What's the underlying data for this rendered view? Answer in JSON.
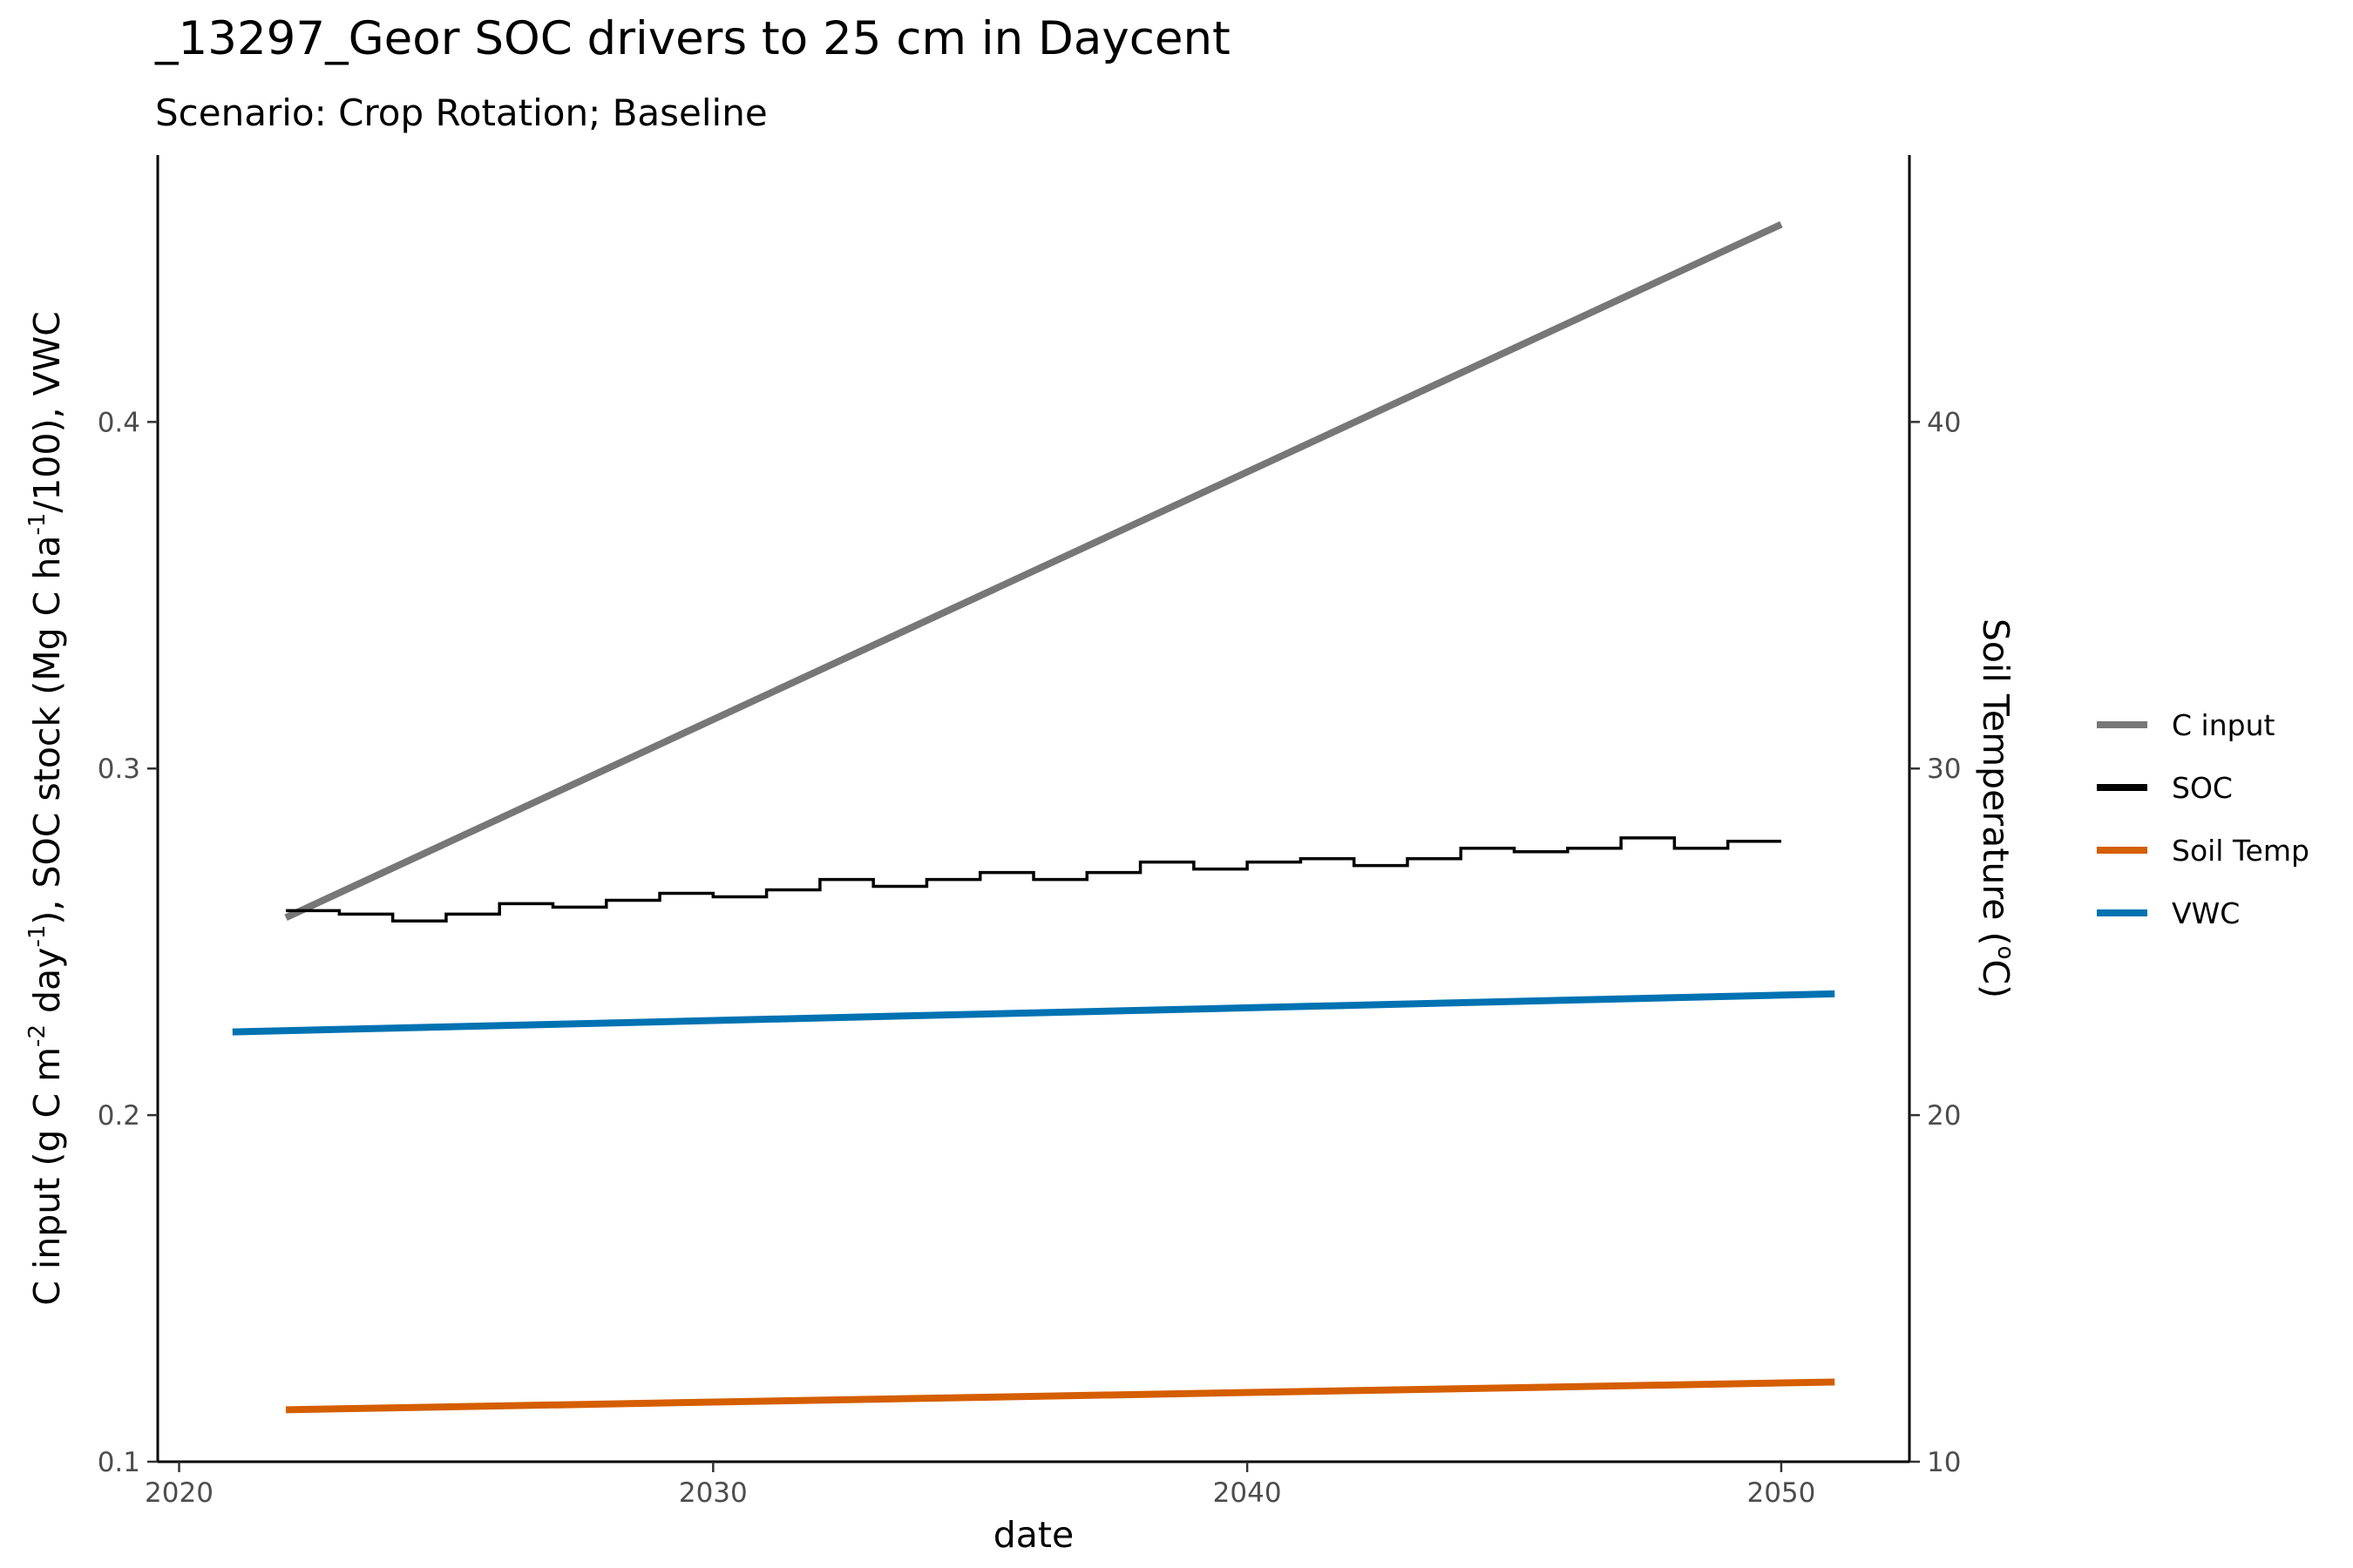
{
  "chart_data": {
    "type": "line",
    "title": "_13297_Geor SOC drivers to 25 cm in Daycent",
    "subtitle": "Scenario: Crop Rotation; Baseline",
    "xlabel": "date",
    "ylabel_left": {
      "p1": "C input (g C m",
      "s1": "-2",
      "p2": " day",
      "s2": "-1",
      "p3": "), SOC stock (Mg C ha",
      "s3": "-1",
      "p4": "/100), VWC"
    },
    "ylabel_right": {
      "p1": "Soil Temperature (",
      "s1": "o",
      "p2": "C)"
    },
    "xlim": [
      2019.6,
      2052.4
    ],
    "ylim_left": [
      0.1,
      0.477
    ],
    "ylim_right": [
      10,
      47.7
    ],
    "x_ticks": [
      2020,
      2030,
      2040,
      2050
    ],
    "x_tick_labels": [
      "2020",
      "2030",
      "2040",
      "2050"
    ],
    "y_left_ticks": [
      0.1,
      0.2,
      0.3,
      0.4
    ],
    "y_left_tick_labels": [
      "0.1",
      "0.2",
      "0.3",
      "0.4"
    ],
    "y_right_ticks": [
      10,
      20,
      30,
      40
    ],
    "y_right_tick_labels": [
      "10",
      "20",
      "30",
      "40"
    ],
    "grid": false,
    "legend_position": "right",
    "series": [
      {
        "name": "C input",
        "axis": "left",
        "color": "#777777",
        "style": "line",
        "points": [
          [
            2022,
            0.257
          ],
          [
            2050,
            0.457
          ]
        ]
      },
      {
        "name": "SOC",
        "axis": "left",
        "color": "#000000",
        "style": "step",
        "x": [
          2022,
          2023,
          2024,
          2025,
          2026,
          2027,
          2028,
          2029,
          2030,
          2031,
          2032,
          2033,
          2034,
          2035,
          2036,
          2037,
          2038,
          2039,
          2040,
          2041,
          2042,
          2043,
          2044,
          2045,
          2046,
          2047,
          2048,
          2049,
          2050
        ],
        "y": [
          0.259,
          0.258,
          0.256,
          0.258,
          0.261,
          0.26,
          0.262,
          0.264,
          0.263,
          0.265,
          0.268,
          0.266,
          0.268,
          0.27,
          0.268,
          0.27,
          0.273,
          0.271,
          0.273,
          0.274,
          0.272,
          0.274,
          0.277,
          0.276,
          0.277,
          0.28,
          0.277,
          0.279,
          0.279
        ]
      },
      {
        "name": "Soil Temp",
        "axis": "right",
        "color": "#D55E00",
        "style": "line",
        "points": [
          [
            2022,
            11.5
          ],
          [
            2051,
            12.3
          ]
        ]
      },
      {
        "name": "VWC",
        "axis": "left",
        "color": "#0072B2",
        "style": "line",
        "points": [
          [
            2021,
            0.224
          ],
          [
            2051,
            0.235
          ]
        ]
      }
    ]
  }
}
